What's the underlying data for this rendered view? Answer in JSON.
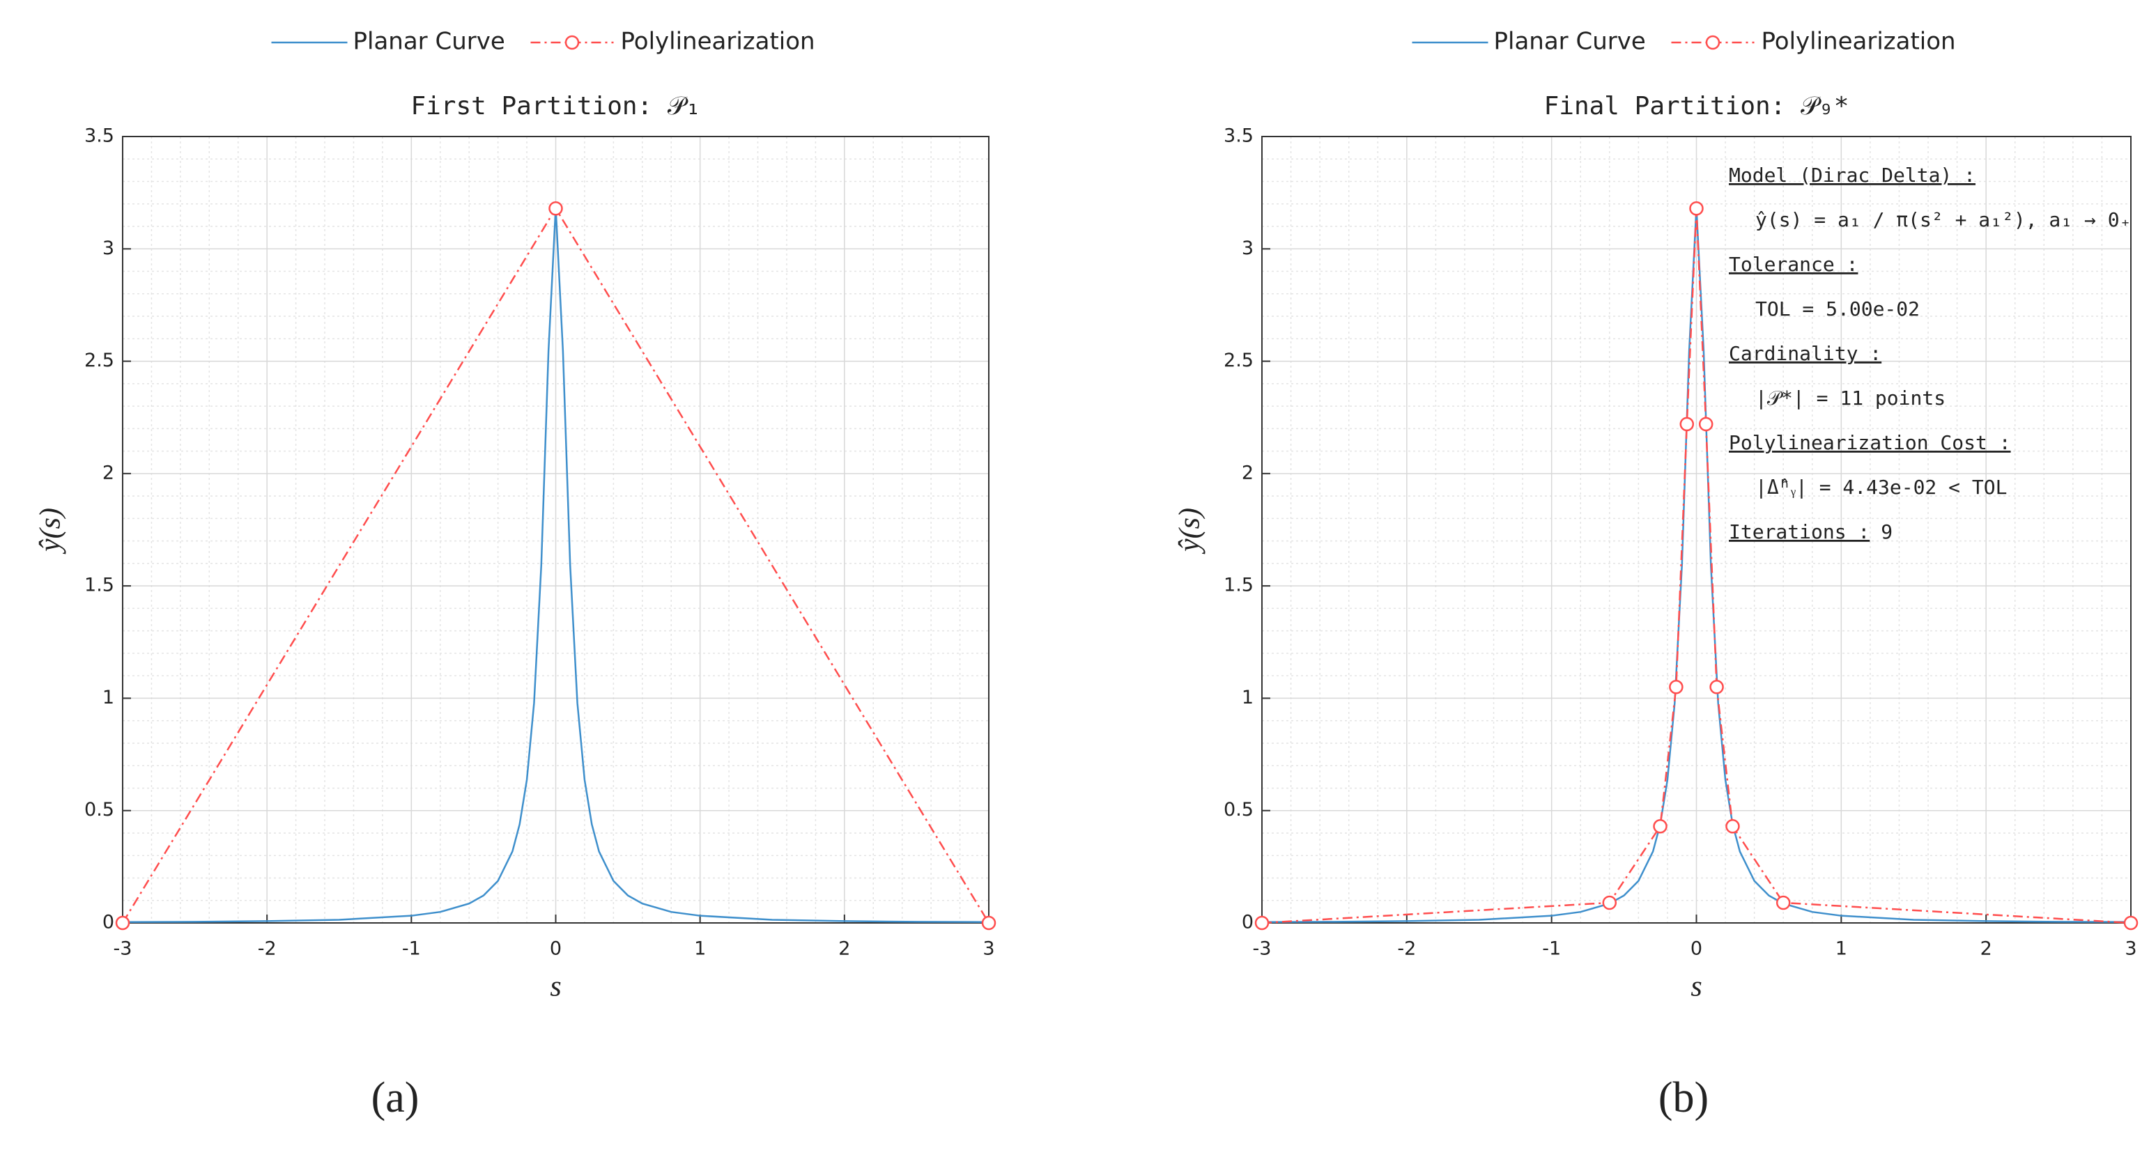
{
  "chart_data": [
    {
      "type": "line",
      "title": "First Partition: 𝒫₁",
      "xlabel": "s",
      "ylabel": "ŷ(s)",
      "panel_label": "(a)",
      "xlim": [
        -3,
        3
      ],
      "xticks": [
        -3,
        -2,
        -1,
        0,
        1,
        2,
        3
      ],
      "ylim": [
        0,
        3.5
      ],
      "yticks": [
        0,
        0.5,
        1,
        1.5,
        2,
        2.5,
        3,
        3.5
      ],
      "grid": true,
      "minor_grid": true,
      "legend": "top",
      "series": [
        {
          "name": "Planar Curve",
          "color": "#3e8fcc",
          "linestyle": "solid",
          "marker": "none",
          "x": [
            -3,
            -2.5,
            -2,
            -1.5,
            -1,
            -0.8,
            -0.6,
            -0.5,
            -0.4,
            -0.3,
            -0.25,
            -0.2,
            -0.15,
            -0.1,
            -0.05,
            0,
            0.05,
            0.1,
            0.15,
            0.2,
            0.25,
            0.3,
            0.4,
            0.5,
            0.6,
            0.8,
            1,
            1.5,
            2,
            2.5,
            3
          ],
          "values": [
            0.004,
            0.005,
            0.008,
            0.014,
            0.032,
            0.049,
            0.086,
            0.122,
            0.187,
            0.318,
            0.439,
            0.637,
            0.979,
            1.592,
            2.546,
            3.183,
            2.546,
            1.592,
            0.979,
            0.637,
            0.439,
            0.318,
            0.187,
            0.122,
            0.086,
            0.049,
            0.032,
            0.014,
            0.008,
            0.005,
            0.004
          ]
        },
        {
          "name": "Polylinearization",
          "color": "#ff4d4d",
          "linestyle": "dashdot",
          "marker": "circle",
          "x": [
            -3,
            0,
            3
          ],
          "values": [
            0,
            3.18,
            0
          ]
        }
      ]
    },
    {
      "type": "line",
      "title": "Final Partition: 𝒫₉*",
      "xlabel": "s",
      "ylabel": "ŷ(s)",
      "panel_label": "(b)",
      "xlim": [
        -3,
        3
      ],
      "xticks": [
        -3,
        -2,
        -1,
        0,
        1,
        2,
        3
      ],
      "ylim": [
        0,
        3.5
      ],
      "yticks": [
        0,
        0.5,
        1,
        1.5,
        2,
        2.5,
        3,
        3.5
      ],
      "grid": true,
      "minor_grid": true,
      "legend": "top",
      "annotation": [
        {
          "heading": "Model (Dirac Delta) :",
          "value": "ŷ(s) = a₁ / π(s² + a₁²),    a₁ → 0₊"
        },
        {
          "heading": "Tolerance :",
          "value": "TOL = 5.00e-02"
        },
        {
          "heading": "Cardinality :",
          "value": "|𝒫*| = 11 points"
        },
        {
          "heading": "Polylinearization Cost :",
          "value": "|Δ̂ʰᵧ| = 4.43e-02 < TOL"
        },
        {
          "heading": "Iterations :",
          "value": "9"
        }
      ],
      "series": [
        {
          "name": "Planar Curve",
          "color": "#3e8fcc",
          "linestyle": "solid",
          "marker": "none",
          "x": [
            -3,
            -2.5,
            -2,
            -1.5,
            -1,
            -0.8,
            -0.6,
            -0.5,
            -0.4,
            -0.3,
            -0.25,
            -0.2,
            -0.15,
            -0.1,
            -0.05,
            0,
            0.05,
            0.1,
            0.15,
            0.2,
            0.25,
            0.3,
            0.4,
            0.5,
            0.6,
            0.8,
            1,
            1.5,
            2,
            2.5,
            3
          ],
          "values": [
            0.004,
            0.005,
            0.008,
            0.014,
            0.032,
            0.049,
            0.086,
            0.122,
            0.187,
            0.318,
            0.439,
            0.637,
            0.979,
            1.592,
            2.546,
            3.183,
            2.546,
            1.592,
            0.979,
            0.637,
            0.439,
            0.318,
            0.187,
            0.122,
            0.086,
            0.049,
            0.032,
            0.014,
            0.008,
            0.005,
            0.004
          ]
        },
        {
          "name": "Polylinearization",
          "color": "#ff4d4d",
          "linestyle": "dashdot",
          "marker": "circle",
          "x": [
            -3,
            -0.6,
            -0.25,
            -0.14,
            -0.066,
            0,
            0.066,
            0.14,
            0.25,
            0.6,
            3
          ],
          "values": [
            0,
            0.09,
            0.43,
            1.05,
            2.22,
            3.18,
            2.22,
            1.05,
            0.43,
            0.09,
            0
          ]
        }
      ]
    }
  ]
}
